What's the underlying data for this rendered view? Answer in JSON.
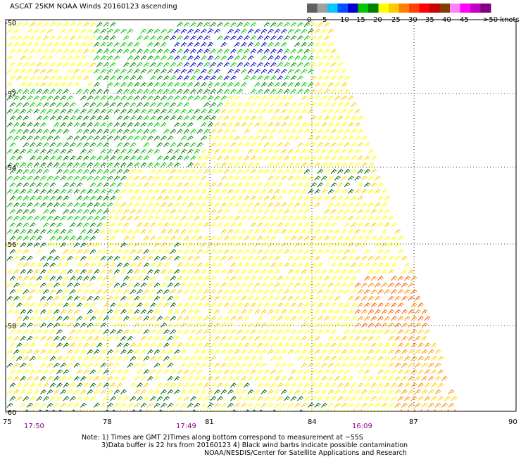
{
  "title": "ASCAT 25KM NOAA Winds 20160123 ascending",
  "legend": {
    "colors": [
      "#606060",
      "#a0a0a0",
      "#00c8ff",
      "#0050ff",
      "#0000c8",
      "#00c800",
      "#008000",
      "#ffff00",
      "#ffc800",
      "#ff8000",
      "#ff4000",
      "#ff0000",
      "#c80000",
      "#804000",
      "#ff80ff",
      "#ff00ff",
      "#c000c0",
      "#800080"
    ],
    "labels": [
      "0",
      "5",
      "10",
      "15",
      "20",
      "25",
      "30",
      "35",
      "40",
      "45",
      ">50 knots"
    ]
  },
  "map": {
    "lat_labels": [
      "-50",
      "-52",
      "-54",
      "-56",
      "-58",
      "-60"
    ],
    "lon_labels": [
      "75",
      "78",
      "81",
      "84",
      "87",
      "90"
    ],
    "times": [
      "17:50",
      "17:49",
      "16:09"
    ]
  },
  "notes": {
    "line1": "Note: 1) Times are GMT 2)Times along bottom correspond to measurement at ~55S",
    "line2": "3)Data buffer is 22 hrs from 20160123 4) Black wind barbs indicate possible contamination",
    "line3": "NOAA/NESDIS/Center for Satellite Applications and Research"
  }
}
